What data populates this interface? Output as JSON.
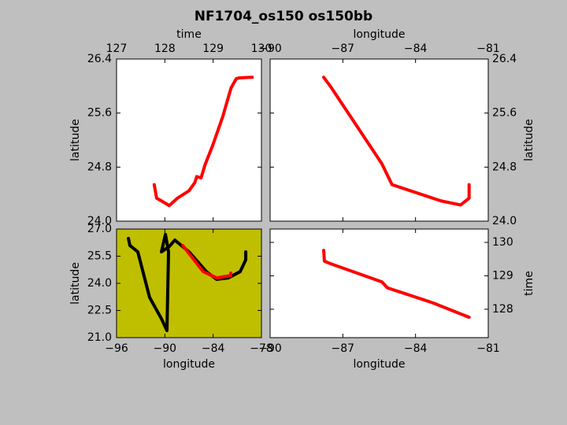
{
  "title": "NF1704_os150 os150bb",
  "chart_data": [
    {
      "type": "line",
      "xlabel": "time",
      "ylabel": "latitude",
      "xaxis_position": "top",
      "yaxis_position": "left",
      "facecolor": "#ffffff",
      "xlim": [
        127,
        130
      ],
      "xticks": [
        127,
        128,
        129,
        130
      ],
      "ylim": [
        24,
        26.4
      ],
      "yticks": [
        {
          "value": 24,
          "label": "24.0"
        },
        24.8,
        25.6,
        26.4
      ],
      "series": [
        {
          "color": "#ff0000",
          "x": [
            127.78,
            127.83,
            127.93,
            128.09,
            128.26,
            128.5,
            128.62,
            128.66,
            128.75,
            128.83,
            128.99,
            129.2,
            129.37,
            129.48,
            129.53,
            129.81
          ],
          "values": [
            24.54,
            24.34,
            24.3,
            24.23,
            24.34,
            24.45,
            24.57,
            24.66,
            24.64,
            24.83,
            25.12,
            25.55,
            25.97,
            26.11,
            26.12,
            26.13
          ]
        }
      ]
    },
    {
      "type": "line",
      "xlabel": "longitude",
      "ylabel": "latitude",
      "xaxis_position": "top",
      "yaxis_position": "right",
      "facecolor": "#ffffff",
      "xlim": [
        -90,
        -81
      ],
      "xticks": [
        {
          "value": -90,
          "label": "−90"
        },
        {
          "value": -87,
          "label": "−87"
        },
        {
          "value": -84,
          "label": "−84"
        },
        {
          "value": -81,
          "label": "−81"
        }
      ],
      "ylim": [
        24,
        26.4
      ],
      "yticks": [
        {
          "value": 24,
          "label": "24.0"
        },
        24.8,
        25.6,
        26.4
      ],
      "series": [
        {
          "color": "#ff0000",
          "x": [
            -87.79,
            -87.5,
            -85.39,
            -84.97,
            -82.95,
            -82.14,
            -81.79,
            -81.79
          ],
          "values": [
            26.13,
            25.99,
            24.85,
            24.54,
            24.3,
            24.24,
            24.34,
            24.54
          ]
        }
      ]
    },
    {
      "type": "line",
      "xlabel": "longitude",
      "ylabel": "latitude",
      "xaxis_position": "bottom",
      "yaxis_position": "left",
      "facecolor": "#bfbf00",
      "xlim": [
        -96,
        -78
      ],
      "xticks": [
        {
          "value": -96,
          "label": "−96"
        },
        {
          "value": -90,
          "label": "−90"
        },
        {
          "value": -84,
          "label": "−84"
        },
        {
          "value": -78,
          "label": "−78"
        }
      ],
      "ylim": [
        21,
        27
      ],
      "yticks": [
        {
          "value": 21,
          "label": "21.0"
        },
        22.5,
        {
          "value": 24,
          "label": "24.0"
        },
        25.5,
        {
          "value": 27,
          "label": "27.0"
        }
      ],
      "series": [
        {
          "color": "#000000",
          "x": [
            -94.53,
            -94.34,
            -93.36,
            -91.89,
            -90.42,
            -89.74,
            -89.64,
            -89.54,
            -89.93,
            -90.42,
            -89.44,
            -88.76,
            -87.0,
            -84.85,
            -83.57,
            -82.11,
            -80.64,
            -79.95,
            -79.95
          ],
          "values": [
            26.48,
            26.09,
            25.74,
            23.22,
            22.04,
            21.39,
            23.57,
            25.74,
            26.7,
            25.74,
            26.04,
            26.39,
            25.74,
            24.65,
            24.22,
            24.3,
            24.65,
            25.3,
            25.74
          ]
        },
        {
          "color": "#ff0000",
          "x": [
            -87.78,
            -85.24,
            -83.57,
            -81.81,
            -81.81
          ],
          "values": [
            26.09,
            24.65,
            24.3,
            24.43,
            24.57
          ]
        }
      ]
    },
    {
      "type": "line",
      "xlabel": "longitude",
      "ylabel": "time",
      "xaxis_position": "bottom",
      "yaxis_position": "right",
      "facecolor": "#ffffff",
      "xlim": [
        -90,
        -81
      ],
      "xticks": [
        {
          "value": -90,
          "label": "−90"
        },
        {
          "value": -87,
          "label": "−87"
        },
        {
          "value": -84,
          "label": "−84"
        },
        {
          "value": -81,
          "label": "−81"
        }
      ],
      "ylim": [
        127.15,
        130.4
      ],
      "yticks": [
        128,
        129,
        130
      ],
      "series": [
        {
          "color": "#ff0000",
          "x": [
            -87.79,
            -87.76,
            -87.5,
            -85.39,
            -85.16,
            -83.28,
            -81.79
          ],
          "values": [
            129.76,
            129.44,
            129.36,
            128.82,
            128.64,
            128.19,
            127.76
          ]
        }
      ]
    }
  ]
}
